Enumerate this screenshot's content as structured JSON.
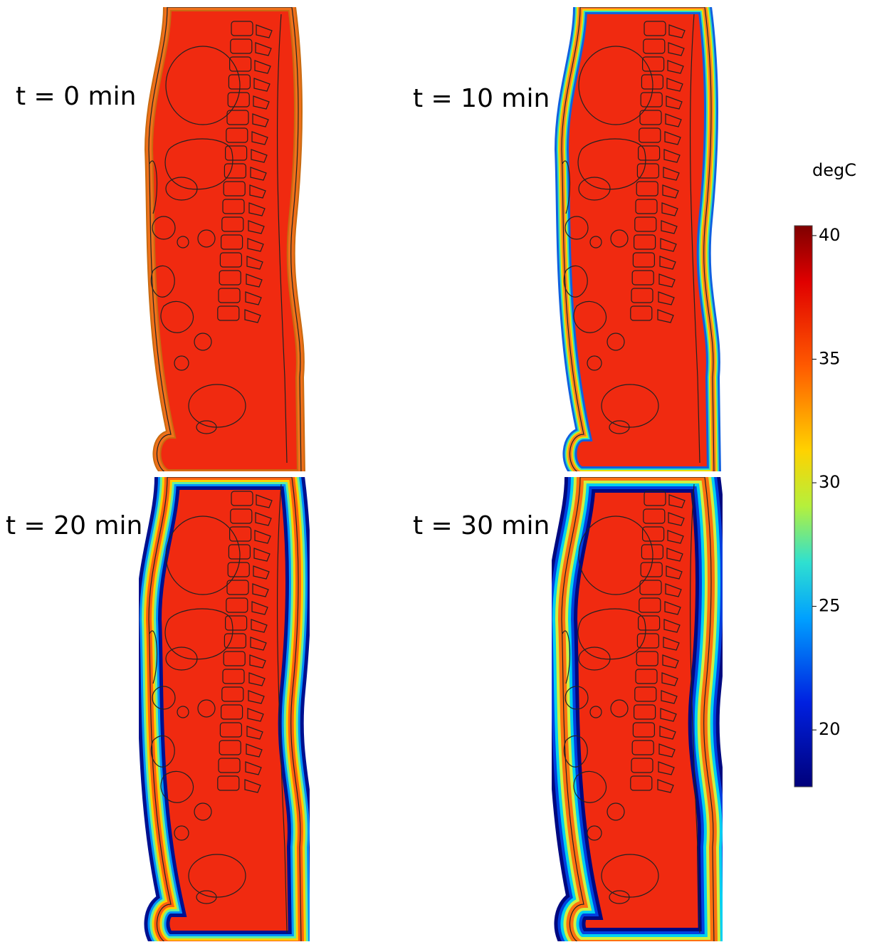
{
  "panels": [
    {
      "label": "t = 0 min"
    },
    {
      "label": "t = 10 min"
    },
    {
      "label": "t = 20 min"
    },
    {
      "label": "t = 30 min"
    }
  ],
  "colorbar": {
    "unit": "degC",
    "lim": [
      17.7,
      40.4
    ],
    "ticks": [
      20,
      25,
      30,
      35,
      40
    ]
  }
}
